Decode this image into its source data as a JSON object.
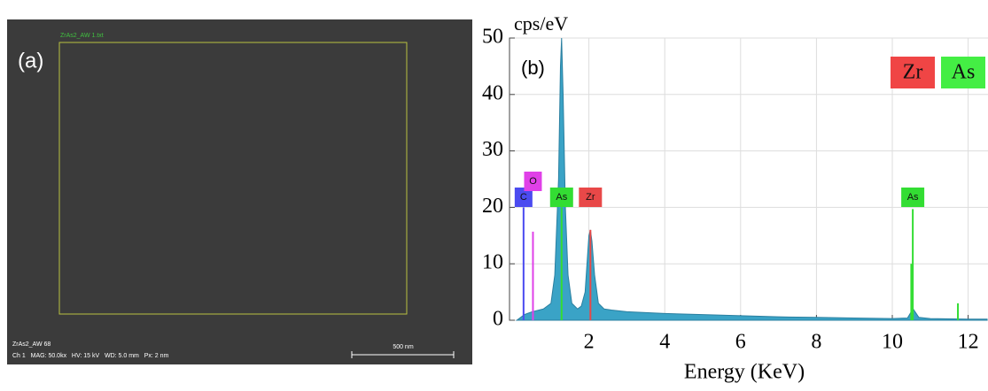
{
  "image_panel": {
    "label": "(a)",
    "file_label": "ZrAs2_AW 1.txt",
    "info_lines": [
      "ZrAs2_AW 68",
      "Ch 1   MAG: 50.0kx   HV: 15 kV   WD: 5.0 mm   Px: 2 nm"
    ],
    "scale_bar": "500 nm"
  },
  "chart_data": {
    "type": "area",
    "panel_label": "(b)",
    "y_label": "cps/eV",
    "x_label": "Energy (KeV)",
    "xlim": [
      0,
      12.5
    ],
    "ylim": [
      0,
      50
    ],
    "xticks": [
      2,
      4,
      6,
      8,
      10,
      12
    ],
    "yticks": [
      0,
      10,
      20,
      30,
      40,
      50
    ],
    "grid": true,
    "spectrum": {
      "color": "#3aa3c6",
      "x": [
        0.1,
        0.3,
        0.5,
        0.8,
        1.0,
        1.1,
        1.2,
        1.25,
        1.28,
        1.32,
        1.38,
        1.45,
        1.55,
        1.7,
        1.8,
        1.9,
        1.95,
        2.0,
        2.04,
        2.08,
        2.15,
        2.25,
        2.4,
        2.6,
        3,
        4,
        5,
        6,
        7,
        8,
        9,
        10,
        10.4,
        10.5,
        10.55,
        10.6,
        10.7,
        11,
        12,
        12.5
      ],
      "values": [
        0,
        1,
        1.5,
        2,
        3,
        8,
        25,
        45,
        50,
        40,
        20,
        8,
        3,
        2,
        2.5,
        5,
        10,
        15,
        16,
        14,
        8,
        3,
        2,
        1.8,
        1.5,
        1.2,
        1,
        0.8,
        0.6,
        0.5,
        0.4,
        0.3,
        0.4,
        1.5,
        2,
        1.5,
        0.5,
        0.3,
        0.2,
        0.2
      ]
    },
    "markers": [
      {
        "name": "C",
        "color": "#4b4bf0",
        "x": 0.277,
        "value": 20
      },
      {
        "name": "O",
        "color": "#e040e8",
        "x": 0.525,
        "value": 15.7
      },
      {
        "name": "As",
        "color": "#33dd33",
        "x": 1.28,
        "value": 20
      },
      {
        "name": "Zr",
        "color": "#e84848",
        "x": 2.04,
        "value": 16
      },
      {
        "name": "As",
        "color": "#33dd33",
        "x": 10.54,
        "value": 19.7
      }
    ],
    "minor_lines": {
      "color": "#33dd33",
      "x": [
        10.5,
        11.73
      ],
      "values": [
        10,
        3
      ]
    },
    "legend": [
      {
        "name": "Zr",
        "color": "#f04545"
      },
      {
        "name": "As",
        "color": "#44ee44"
      }
    ]
  }
}
